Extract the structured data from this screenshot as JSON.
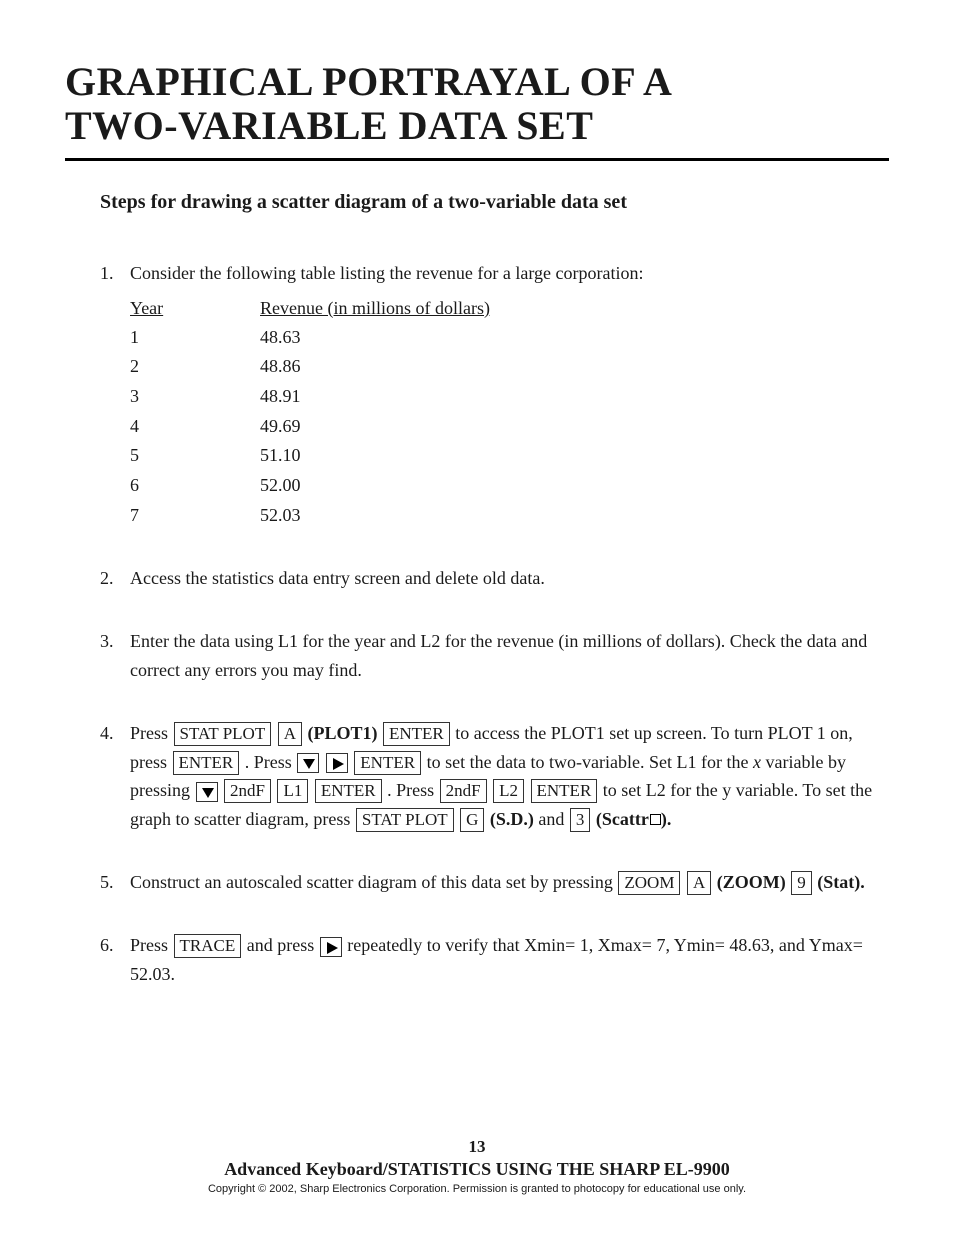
{
  "title_line1": "GRAPHICAL PORTRAYAL OF A",
  "title_line2": "TWO-VARIABLE DATA SET",
  "section_heading": "Steps for drawing a scatter diagram of a two-variable data set",
  "table": {
    "header_year": "Year",
    "header_revenue": "Revenue (in millions of dollars)",
    "rows": [
      {
        "year": "1",
        "revenue": "48.63"
      },
      {
        "year": "2",
        "revenue": "48.86"
      },
      {
        "year": "3",
        "revenue": "48.91"
      },
      {
        "year": "4",
        "revenue": "49.69"
      },
      {
        "year": "5",
        "revenue": "51.10"
      },
      {
        "year": "6",
        "revenue": "52.00"
      },
      {
        "year": "7",
        "revenue": "52.03"
      }
    ]
  },
  "steps": {
    "s1_intro": "Consider the following table listing the revenue for a large corporation:",
    "s2": "Access the statistics data entry screen and delete old data.",
    "s3": "Enter the data using L1 for the year and  L2 for the revenue (in millions of dollars).  Check the data and correct any errors you may find.",
    "s4": {
      "t_press": "Press  ",
      "t_plot1_bold": "(PLOT1)",
      "t_after_enter1": " to access the PLOT1 set up screen.  To turn PLOT 1 on, press ",
      "t_press2": " .   Press ",
      "t_after_arrows": "to set the data to two-variable.  Set L1 for the ",
      "t_xvar": "x",
      "t_after_x": " variable by pressing",
      "t_press3": " .   Press ",
      "t_after_l2": " to set L2 for the y variable.  To set the graph to scatter diagram, press  ",
      "t_sd_bold": "(S.D.)",
      "t_and": " and ",
      "t_scattr_bold": "(Scattr",
      "t_close": ")."
    },
    "s5": {
      "t1": "Construct an autoscaled scatter diagram of this data set by pressing ",
      "t_zoom_bold": "(ZOOM)",
      "t_stat_bold": "(Stat)."
    },
    "s6": {
      "t_press": "Press ",
      "t_andpress": " and press  ",
      "t_after": " repeatedly to verify that Xmin= 1, Xmax= 7, Ymin= 48.63, and Ymax= 52.03."
    }
  },
  "keys": {
    "stat_plot": "STAT PLOT",
    "a": "A",
    "enter": "ENTER",
    "secondf": "2ndF",
    "l1": "L1",
    "l2": "L2",
    "g": "G",
    "three": "3",
    "zoom": "ZOOM",
    "nine": "9",
    "trace": "TRACE"
  },
  "footer": {
    "page": "13",
    "booktitle": "Advanced Keyboard/STATISTICS USING THE SHARP EL-9900",
    "copyright": "Copyright © 2002, Sharp Electronics Corporation.  Permission is granted to photocopy for educational use only."
  }
}
